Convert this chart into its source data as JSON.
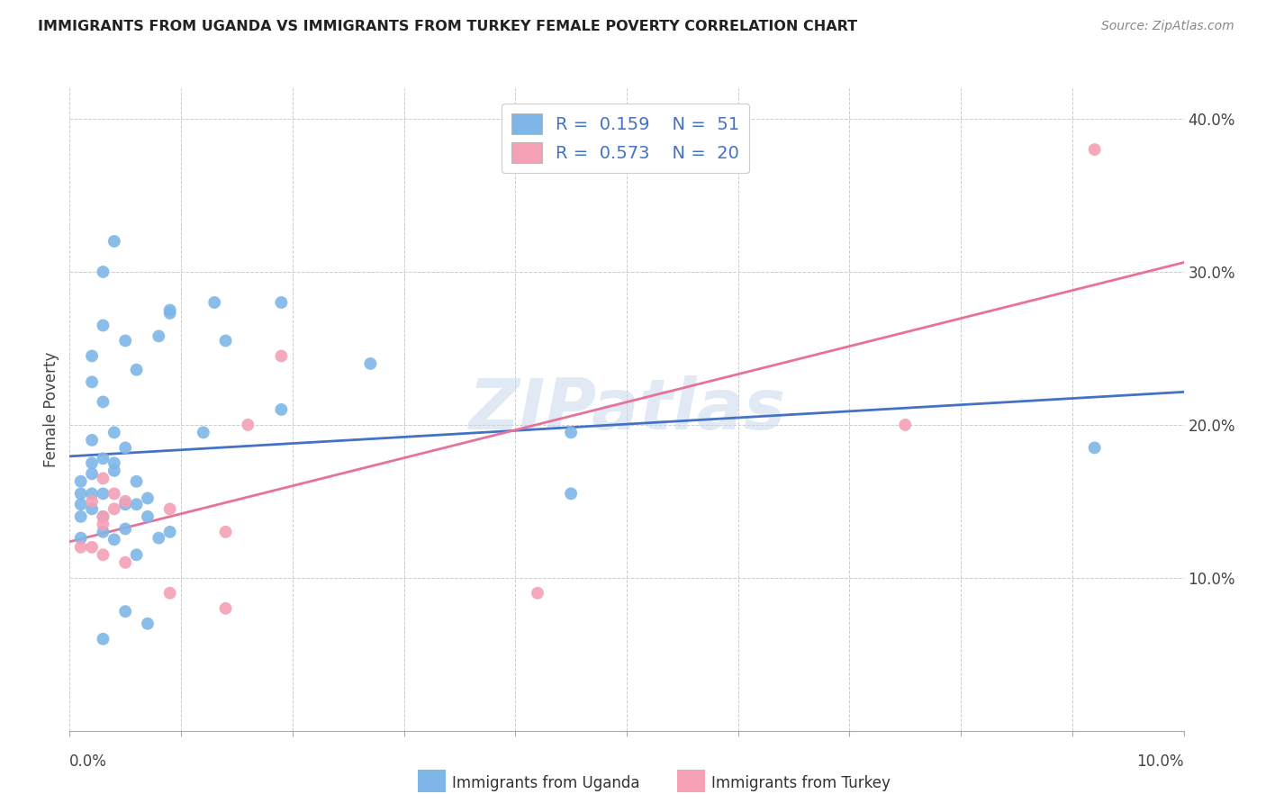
{
  "title": "IMMIGRANTS FROM UGANDA VS IMMIGRANTS FROM TURKEY FEMALE POVERTY CORRELATION CHART",
  "source": "Source: ZipAtlas.com",
  "ylabel": "Female Poverty",
  "xlim": [
    0.0,
    0.1
  ],
  "ylim": [
    0.0,
    0.42
  ],
  "yticks": [
    0.0,
    0.1,
    0.2,
    0.3,
    0.4
  ],
  "ytick_labels": [
    "",
    "10.0%",
    "20.0%",
    "30.0%",
    "40.0%"
  ],
  "xticks": [
    0.0,
    0.01,
    0.02,
    0.03,
    0.04,
    0.05,
    0.06,
    0.07,
    0.08,
    0.09,
    0.1
  ],
  "uganda_color": "#7EB6E8",
  "turkey_color": "#F4A0B5",
  "uganda_line_color": "#4472C4",
  "turkey_line_color": "#E8719A",
  "uganda_x": [
    0.001,
    0.001,
    0.001,
    0.001,
    0.001,
    0.002,
    0.002,
    0.002,
    0.002,
    0.002,
    0.002,
    0.002,
    0.003,
    0.003,
    0.003,
    0.003,
    0.003,
    0.003,
    0.003,
    0.003,
    0.004,
    0.004,
    0.004,
    0.004,
    0.004,
    0.005,
    0.005,
    0.005,
    0.005,
    0.005,
    0.006,
    0.006,
    0.006,
    0.006,
    0.007,
    0.007,
    0.007,
    0.008,
    0.008,
    0.009,
    0.009,
    0.009,
    0.012,
    0.013,
    0.014,
    0.019,
    0.019,
    0.027,
    0.045,
    0.045,
    0.092
  ],
  "uganda_y": [
    0.163,
    0.155,
    0.148,
    0.14,
    0.126,
    0.245,
    0.228,
    0.19,
    0.175,
    0.168,
    0.155,
    0.145,
    0.3,
    0.265,
    0.215,
    0.178,
    0.155,
    0.14,
    0.13,
    0.06,
    0.32,
    0.195,
    0.175,
    0.17,
    0.125,
    0.255,
    0.185,
    0.148,
    0.132,
    0.078,
    0.236,
    0.163,
    0.148,
    0.115,
    0.152,
    0.14,
    0.07,
    0.258,
    0.126,
    0.275,
    0.273,
    0.13,
    0.195,
    0.28,
    0.255,
    0.28,
    0.21,
    0.24,
    0.155,
    0.195,
    0.185
  ],
  "turkey_x": [
    0.001,
    0.002,
    0.002,
    0.003,
    0.003,
    0.003,
    0.003,
    0.004,
    0.004,
    0.005,
    0.005,
    0.009,
    0.009,
    0.014,
    0.014,
    0.016,
    0.019,
    0.042,
    0.075,
    0.092
  ],
  "turkey_y": [
    0.12,
    0.15,
    0.12,
    0.165,
    0.14,
    0.135,
    0.115,
    0.155,
    0.145,
    0.15,
    0.11,
    0.145,
    0.09,
    0.13,
    0.08,
    0.2,
    0.245,
    0.09,
    0.2,
    0.38
  ],
  "watermark": "ZIPatlas",
  "background_color": "#FFFFFF",
  "grid_color": "#CCCCCC"
}
